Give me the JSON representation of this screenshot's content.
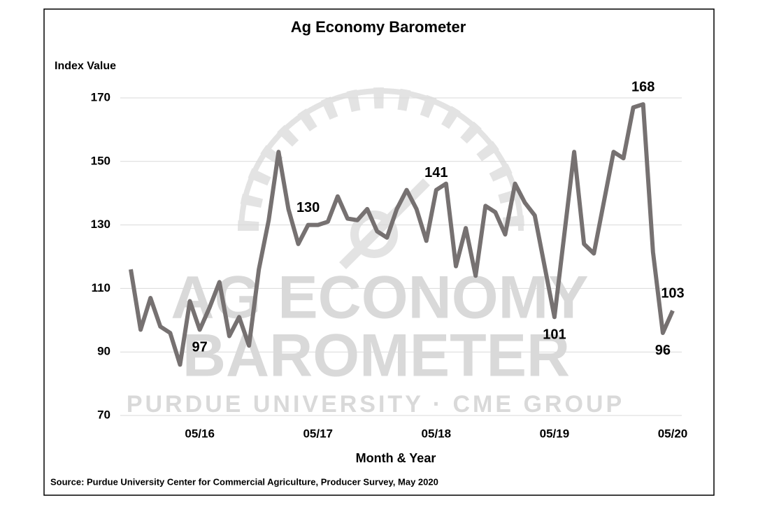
{
  "watermark": [
    "AG ECONOMY",
    "BAROMETER",
    "PURDUE UNIVERSITY  ·  CME GROUP"
  ],
  "chart_data": {
    "type": "line",
    "title": "Ag Economy Barometer",
    "y_label": "Index Value",
    "x_label": "Month & Year",
    "source": "Source: Purdue University Center for Commercial Agriculture, Producer Survey, May 2020",
    "categories": [
      null,
      null,
      null,
      null,
      null,
      null,
      null,
      "05/16",
      null,
      null,
      null,
      null,
      null,
      null,
      null,
      null,
      null,
      null,
      null,
      "05/17",
      null,
      null,
      null,
      null,
      null,
      null,
      null,
      null,
      null,
      null,
      null,
      "05/18",
      null,
      null,
      null,
      null,
      null,
      null,
      null,
      null,
      null,
      null,
      null,
      "05/19",
      null,
      null,
      null,
      null,
      null,
      null,
      null,
      null,
      null,
      null,
      null,
      "05/20"
    ],
    "series": [
      {
        "name": "Index Value",
        "color": "#767171",
        "values": [
          116,
          97,
          107,
          98,
          96,
          86,
          106,
          97,
          104,
          112,
          95,
          101,
          92,
          116,
          131.5,
          153,
          135,
          124,
          130,
          130,
          131,
          139,
          132,
          131.5,
          135,
          128,
          126,
          135,
          141,
          135,
          125,
          141,
          143,
          117,
          129,
          114,
          136,
          134,
          127,
          143,
          137,
          133,
          117,
          101,
          127,
          153,
          124,
          121,
          137,
          153,
          151,
          167,
          168,
          121.5,
          96,
          103
        ]
      }
    ],
    "labeled_points": [
      7,
      18,
      31,
      43,
      52,
      54,
      55
    ],
    "ylim": [
      70,
      180
    ],
    "yticks": [
      70,
      90,
      110,
      130,
      150,
      170
    ],
    "grid": true
  }
}
